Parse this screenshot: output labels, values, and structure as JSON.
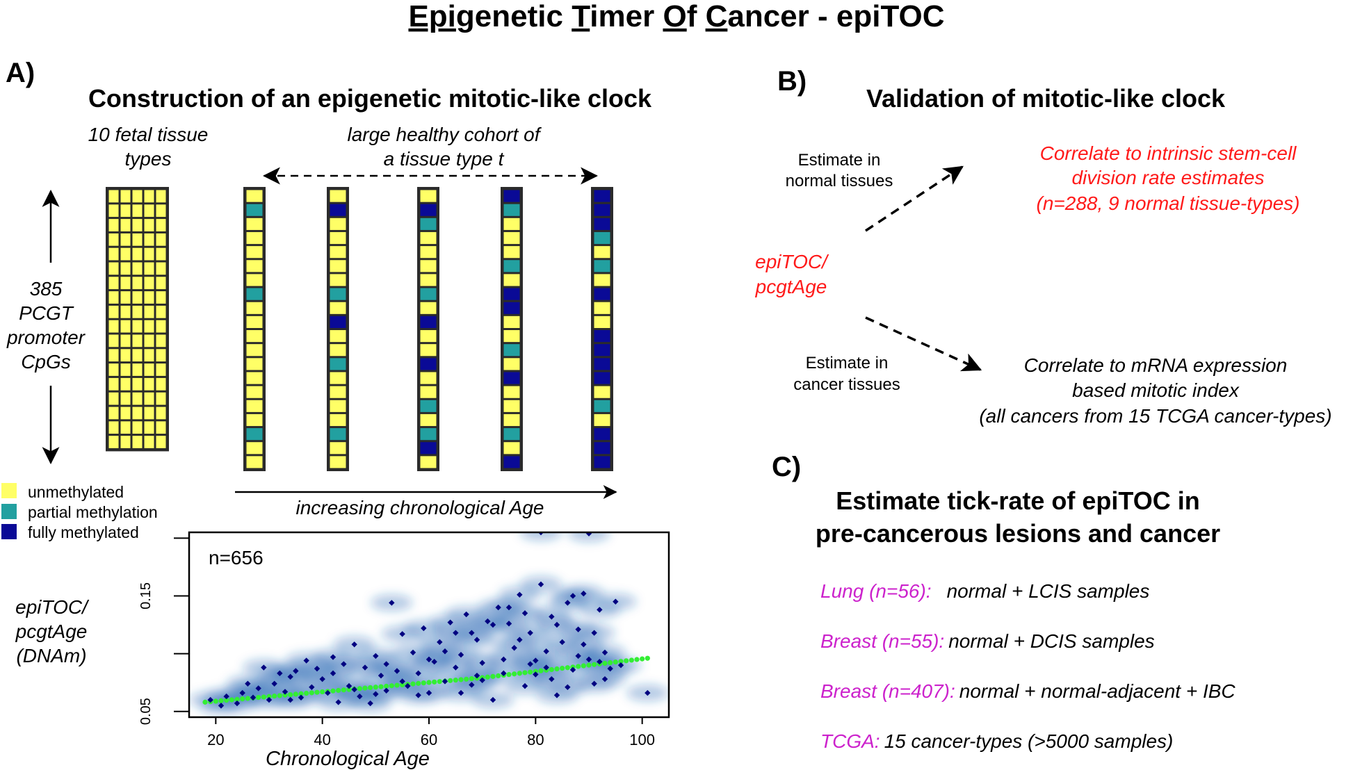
{
  "title": {
    "parts": [
      "Epi",
      "genetic ",
      "T",
      "imer ",
      "O",
      "f ",
      "C",
      "ancer - epiTOC"
    ]
  },
  "panel_a": {
    "label": "A)",
    "heading": "Construction of an epigenetic mitotic-like clock",
    "fetal_label": [
      "10 fetal tissue",
      "types"
    ],
    "cohort_label": [
      "large healthy cohort of",
      "a tissue type t"
    ],
    "cpg_label": [
      "385",
      "PCGT",
      "promoter",
      "CpGs"
    ],
    "age_arrow_label": "increasing chronological Age",
    "legend": [
      {
        "label": "unmethylated",
        "color": "#ffff66"
      },
      {
        "label": "partial methylation",
        "color": "#22a0a0"
      },
      {
        "label": "fully methylated",
        "color": "#0a0a96"
      }
    ],
    "colors": {
      "unmethylated": "#ffff66",
      "partial": "#22a0a0",
      "full": "#0a0a96",
      "border": "#2b2b2b"
    },
    "fetal_grid": {
      "cols": 5,
      "rows": 18
    },
    "cohort_columns": [
      {
        "states": [
          "u",
          "p",
          "u",
          "u",
          "u",
          "u",
          "u",
          "p",
          "u",
          "u",
          "u",
          "u",
          "u",
          "u",
          "u",
          "u",
          "u",
          "p",
          "u",
          "u"
        ]
      },
      {
        "states": [
          "u",
          "f",
          "u",
          "u",
          "u",
          "u",
          "u",
          "p",
          "u",
          "f",
          "u",
          "u",
          "p",
          "u",
          "u",
          "u",
          "u",
          "p",
          "u",
          "u"
        ]
      },
      {
        "states": [
          "u",
          "f",
          "p",
          "u",
          "u",
          "u",
          "u",
          "p",
          "u",
          "f",
          "u",
          "u",
          "f",
          "u",
          "u",
          "p",
          "u",
          "p",
          "f",
          "u"
        ]
      },
      {
        "states": [
          "f",
          "p",
          "u",
          "u",
          "u",
          "p",
          "u",
          "f",
          "f",
          "u",
          "u",
          "p",
          "u",
          "f",
          "u",
          "u",
          "u",
          "p",
          "u",
          "f"
        ]
      },
      {
        "states": [
          "f",
          "f",
          "f",
          "p",
          "u",
          "p",
          "u",
          "f",
          "u",
          "u",
          "f",
          "f",
          "f",
          "f",
          "u",
          "p",
          "u",
          "f",
          "f",
          "f"
        ]
      }
    ]
  },
  "panel_b": {
    "label": "B)",
    "heading": "Validation of mitotic-like clock",
    "center_label": [
      "epiTOC/",
      "pcgtAge"
    ],
    "normal_label": [
      "Estimate in",
      "normal tissues"
    ],
    "cancer_label": [
      "Estimate in",
      "cancer tissues"
    ],
    "normal_target": [
      "Correlate to intrinsic stem-cell",
      "division rate estimates",
      "(n=288, 9 normal tissue-types)"
    ],
    "cancer_target": [
      "Correlate to mRNA expression",
      "based mitotic index",
      "(all cancers from 15 TCGA cancer-types)"
    ]
  },
  "panel_c": {
    "label": "C)",
    "heading": [
      "Estimate tick-rate of epiTOC in",
      "pre-cancerous lesions and cancer"
    ],
    "items": [
      {
        "name": "Lung (n=56):",
        "desc": "normal + LCIS samples"
      },
      {
        "name": "Breast (n=55):",
        "desc": "normal + DCIS samples"
      },
      {
        "name": "Breast (n=407):",
        "desc": "normal + normal-adjacent + IBC"
      },
      {
        "name": "TCGA:",
        "desc": "15 cancer-types (>5000 samples)"
      }
    ],
    "accent": "#cc22cc"
  },
  "accent_red": "#ff1a1a",
  "chart_data": {
    "type": "scatter",
    "title": "",
    "annotation": "n=656",
    "xlabel": "Chronological Age",
    "ylabel": [
      "epiTOC/",
      "pcgtAge",
      "(DNAm)"
    ],
    "xlim": [
      15,
      105
    ],
    "ylim": [
      0.045,
      0.205
    ],
    "xticks": [
      20,
      40,
      60,
      80,
      100
    ],
    "yticks": [
      0.05,
      0.1,
      0.15,
      0.2
    ],
    "ytick_labels": [
      "0.05",
      "",
      "0.15",
      ""
    ],
    "point_color": "#000080",
    "fit_color": "#33ee33",
    "density_color": "#1f5fb0",
    "points": [
      [
        19,
        0.06
      ],
      [
        21,
        0.055
      ],
      [
        22,
        0.063
      ],
      [
        24,
        0.057
      ],
      [
        25,
        0.066
      ],
      [
        27,
        0.062
      ],
      [
        28,
        0.07
      ],
      [
        29,
        0.088
      ],
      [
        30,
        0.06
      ],
      [
        31,
        0.074
      ],
      [
        32,
        0.083
      ],
      [
        33,
        0.067
      ],
      [
        34,
        0.08
      ],
      [
        35,
        0.085
      ],
      [
        36,
        0.062
      ],
      [
        37,
        0.094
      ],
      [
        38,
        0.071
      ],
      [
        39,
        0.087
      ],
      [
        40,
        0.078
      ],
      [
        41,
        0.066
      ],
      [
        42,
        0.083
      ],
      [
        43,
        0.058
      ],
      [
        44,
        0.091
      ],
      [
        45,
        0.072
      ],
      [
        46,
        0.108
      ],
      [
        47,
        0.063
      ],
      [
        48,
        0.088
      ],
      [
        49,
        0.057
      ],
      [
        50,
        0.098
      ],
      [
        51,
        0.081
      ],
      [
        52,
        0.068
      ],
      [
        53,
        0.144
      ],
      [
        54,
        0.085
      ],
      [
        55,
        0.117
      ],
      [
        56,
        0.072
      ],
      [
        57,
        0.101
      ],
      [
        58,
        0.083
      ],
      [
        59,
        0.122
      ],
      [
        60,
        0.066
      ],
      [
        61,
        0.093
      ],
      [
        62,
        0.11
      ],
      [
        63,
        0.076
      ],
      [
        64,
        0.127
      ],
      [
        65,
        0.088
      ],
      [
        66,
        0.099
      ],
      [
        67,
        0.134
      ],
      [
        68,
        0.073
      ],
      [
        69,
        0.112
      ],
      [
        70,
        0.092
      ],
      [
        71,
        0.128
      ],
      [
        72,
        0.06
      ],
      [
        73,
        0.14
      ],
      [
        74,
        0.083
      ],
      [
        75,
        0.126
      ],
      [
        76,
        0.105
      ],
      [
        77,
        0.151
      ],
      [
        78,
        0.072
      ],
      [
        79,
        0.118
      ],
      [
        80,
        0.094
      ],
      [
        81,
        0.16
      ],
      [
        82,
        0.088
      ],
      [
        83,
        0.132
      ],
      [
        84,
        0.064
      ],
      [
        85,
        0.11
      ],
      [
        86,
        0.144
      ],
      [
        87,
        0.086
      ],
      [
        88,
        0.121
      ],
      [
        89,
        0.152
      ],
      [
        90,
        0.095
      ],
      [
        91,
        0.074
      ],
      [
        92,
        0.138
      ],
      [
        93,
        0.101
      ],
      [
        94,
        0.087
      ],
      [
        95,
        0.145
      ],
      [
        96,
        0.09
      ],
      [
        46,
        0.069
      ],
      [
        52,
        0.091
      ],
      [
        58,
        0.064
      ],
      [
        63,
        0.102
      ],
      [
        69,
        0.081
      ],
      [
        74,
        0.095
      ],
      [
        78,
        0.135
      ],
      [
        82,
        0.102
      ],
      [
        86,
        0.071
      ],
      [
        88,
        0.098
      ],
      [
        91,
        0.118
      ],
      [
        65,
        0.118
      ],
      [
        70,
        0.077
      ],
      [
        75,
        0.14
      ],
      [
        80,
        0.082
      ],
      [
        84,
        0.125
      ],
      [
        89,
        0.108
      ],
      [
        93,
        0.078
      ],
      [
        60,
        0.095
      ],
      [
        55,
        0.076
      ],
      [
        72,
        0.125
      ],
      [
        77,
        0.112
      ],
      [
        81,
        0.205
      ],
      [
        90,
        0.204
      ],
      [
        101,
        0.066
      ],
      [
        26,
        0.074
      ],
      [
        34,
        0.06
      ],
      [
        42,
        0.097
      ],
      [
        50,
        0.065
      ],
      [
        66,
        0.066
      ],
      [
        83,
        0.078
      ],
      [
        87,
        0.15
      ],
      [
        92,
        0.093
      ],
      [
        79,
        0.091
      ],
      [
        68,
        0.118
      ]
    ],
    "fit": {
      "x_start": 18,
      "x_end": 101,
      "step": 1,
      "y_start": 0.058,
      "y_end": 0.096
    }
  }
}
